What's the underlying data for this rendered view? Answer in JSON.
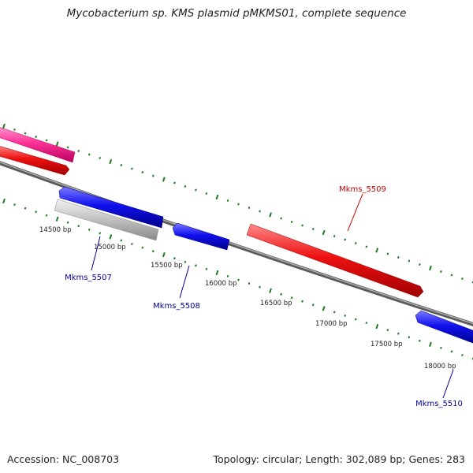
{
  "title": "Mycobacterium sp. KMS plasmid pMKMS01, complete sequence",
  "footer": {
    "accession": "Accession: NC_008703",
    "topology": "Topology: circular; Length: 302,089 bp; Genes: 283"
  },
  "colors": {
    "backbone": "#808080",
    "tick": "#1f7a1f",
    "red_gene": "#ee1111",
    "red_label": "#cc0000",
    "blue_gene": "#1010ee",
    "blue_label": "#000099",
    "pink_gene": "#ff3399",
    "gray_gene": "#c0c0c0"
  },
  "scale_labels": [
    "14500 bp",
    "15000 bp",
    "15500 bp",
    "16000 bp",
    "16500 bp",
    "17000 bp",
    "17500 bp",
    "18000 bp"
  ],
  "genes": [
    {
      "id": "pink-forward-gene",
      "strand": "forward",
      "color": "pink"
    },
    {
      "id": "red-forward-gene-1",
      "strand": "forward",
      "color": "red"
    },
    {
      "id": "Mkms_5509",
      "label": "Mkms_5509",
      "strand": "forward",
      "color": "red"
    },
    {
      "id": "blue-reverse-gene",
      "strand": "reverse",
      "color": "blue"
    },
    {
      "id": "Mkms_5507",
      "label": "Mkms_5507",
      "strand": "reverse",
      "color": "gray"
    },
    {
      "id": "Mkms_5508",
      "label": "Mkms_5508",
      "strand": "reverse",
      "color": "blue"
    },
    {
      "id": "Mkms_5510",
      "label": "Mkms_5510",
      "strand": "reverse",
      "color": "blue"
    }
  ]
}
